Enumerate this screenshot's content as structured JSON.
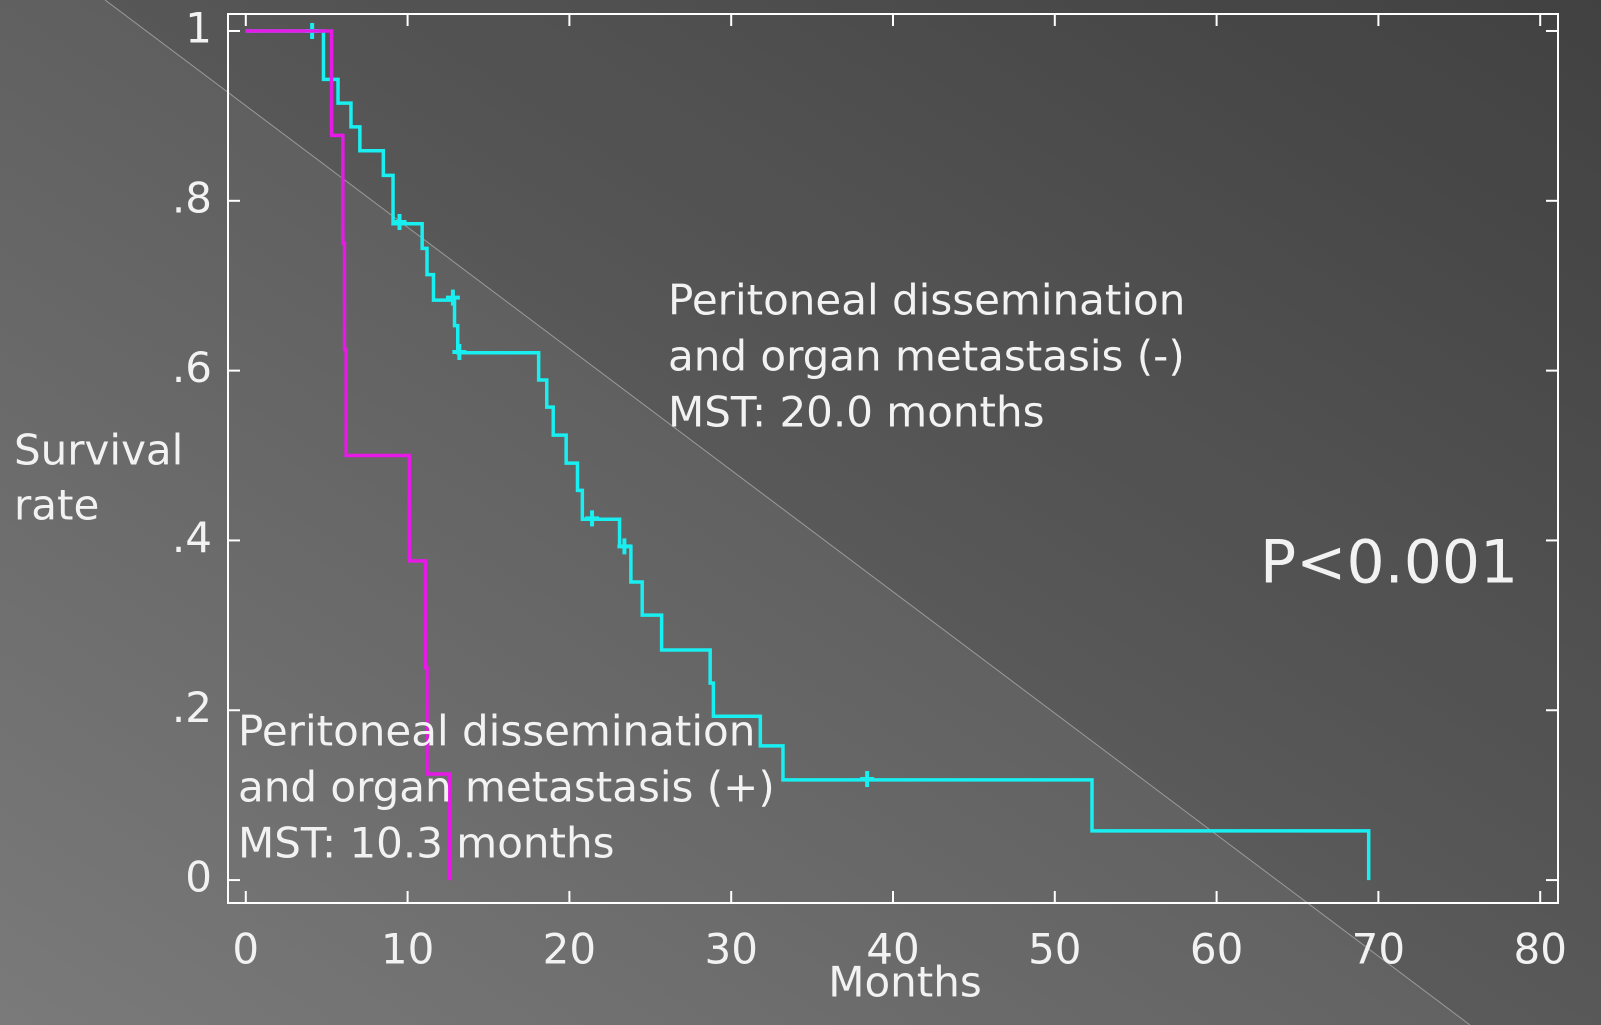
{
  "chart_data": {
    "type": "step",
    "xlabel": "Months",
    "ylabel": [
      "Survival",
      "rate"
    ],
    "xlim": [
      -1.1,
      81.1
    ],
    "ylim": [
      -0.027,
      1.02
    ],
    "xticks": [
      0,
      10,
      20,
      30,
      40,
      50,
      60,
      70,
      80
    ],
    "yticks": [
      0,
      {
        "value": 0.2,
        "label": ".2"
      },
      {
        "value": 0.4,
        "label": ".4"
      },
      {
        "value": 0.6,
        "label": ".6"
      },
      {
        "value": 0.8,
        "label": ".8"
      },
      1
    ],
    "series": [
      {
        "name": "Peritoneal dissemination and organ metastasis (-)",
        "color": "#19eef0",
        "x": [
          0,
          4.8,
          5.7,
          6.5,
          7.05,
          8.5,
          9.1,
          10.9,
          11.2,
          11.6,
          12.9,
          13.1,
          18.1,
          18.6,
          19.0,
          19.8,
          20.5,
          20.8,
          23.1,
          23.8,
          24.5,
          25.7,
          28.7,
          28.9,
          31.8,
          33.2,
          52.3,
          69.4
        ],
        "values": [
          1.0,
          0.943,
          0.915,
          0.887,
          0.859,
          0.83,
          0.773,
          0.744,
          0.713,
          0.683,
          0.653,
          0.621,
          0.589,
          0.557,
          0.524,
          0.491,
          0.459,
          0.425,
          0.393,
          0.351,
          0.312,
          0.271,
          0.232,
          0.193,
          0.158,
          0.118,
          0.058,
          0.0
        ],
        "censored": {
          "x": [
            4.1,
            9.5,
            12.8,
            13.2,
            21.4,
            23.4,
            38.4
          ],
          "values": [
            1.0,
            0.775,
            0.686,
            0.622,
            0.426,
            0.393,
            0.119
          ]
        }
      },
      {
        "name": "Peritoneal dissemination and organ metastasis (+)",
        "color": "#e619e6",
        "x": [
          0,
          5.3,
          6.0,
          6.1,
          6.2,
          10.1,
          11.1,
          11.2,
          12.6
        ],
        "values": [
          1.0,
          0.877,
          0.75,
          0.625,
          0.5,
          0.376,
          0.25,
          0.125,
          0.0
        ]
      }
    ],
    "annotations": [
      {
        "lines": [
          "Peritoneal dissemination",
          "and organ metastasis (-)",
          "MST: 20.0 months"
        ]
      },
      {
        "lines": [
          "Peritoneal dissemination",
          "and organ metastasis (+)",
          "MST: 10.3 months"
        ]
      },
      {
        "lines": [
          "P<0.001"
        ]
      }
    ]
  }
}
